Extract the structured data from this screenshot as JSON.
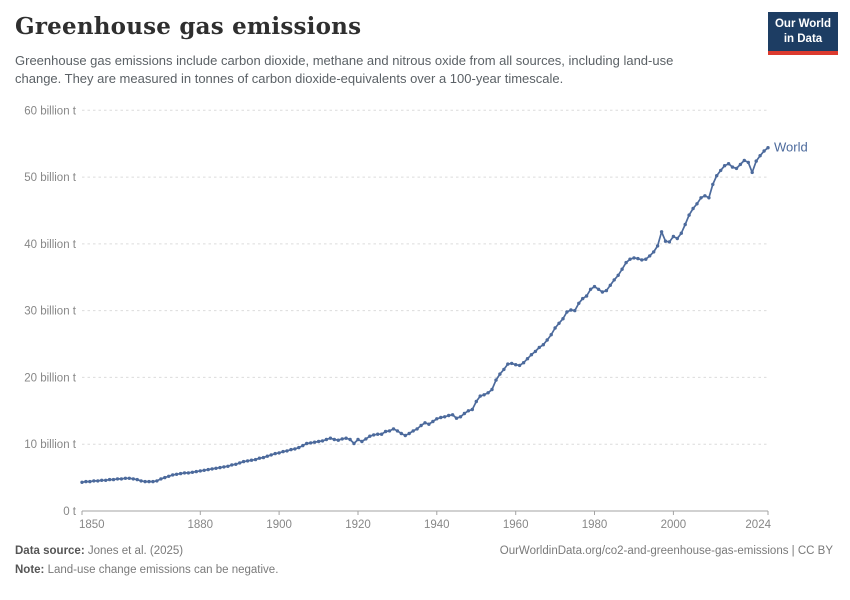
{
  "header": {
    "title": "Greenhouse gas emissions",
    "subtitle": "Greenhouse gas emissions include carbon dioxide, methane and nitrous oxide from all sources, including land-use change. They are measured in tonnes of carbon dioxide-equivalents over a 100-year timescale.",
    "logo": {
      "line1": "Our World",
      "line2": "in Data",
      "bg_color": "#1d3d63",
      "accent_color": "#dc3a2e"
    }
  },
  "chart_data": {
    "type": "line",
    "title": "Greenhouse gas emissions",
    "xlabel": "",
    "ylabel": "",
    "xlim": [
      1850,
      2024
    ],
    "ylim": [
      0,
      60
    ],
    "grid": "horizontal-dashed",
    "legend_position": "end-of-line-label",
    "x_ticks": [
      1850,
      1880,
      1900,
      1920,
      1940,
      1960,
      1980,
      2000,
      2024
    ],
    "y_ticks": [
      {
        "value": 0,
        "label": "0 t"
      },
      {
        "value": 10,
        "label": "10 billion t"
      },
      {
        "value": 20,
        "label": "20 billion t"
      },
      {
        "value": 30,
        "label": "30 billion t"
      },
      {
        "value": 40,
        "label": "40 billion t"
      },
      {
        "value": 50,
        "label": "50 billion t"
      },
      {
        "value": 60,
        "label": "60 billion t"
      }
    ],
    "grid_color": "#dcdcdc",
    "axis_color": "#a3a3a3",
    "tick_label_color": "#878787",
    "x_years": {
      "start": 1850,
      "end": 2024,
      "step": 1
    },
    "series": [
      {
        "name": "World",
        "color": "#4C6A9C",
        "values": [
          4.3,
          4.4,
          4.4,
          4.5,
          4.5,
          4.6,
          4.6,
          4.7,
          4.7,
          4.8,
          4.8,
          4.9,
          4.9,
          4.8,
          4.7,
          4.5,
          4.4,
          4.4,
          4.4,
          4.5,
          4.8,
          5.0,
          5.2,
          5.4,
          5.5,
          5.6,
          5.7,
          5.7,
          5.8,
          5.9,
          6.0,
          6.1,
          6.2,
          6.3,
          6.4,
          6.5,
          6.6,
          6.7,
          6.9,
          7.0,
          7.2,
          7.4,
          7.5,
          7.6,
          7.7,
          7.9,
          8.0,
          8.2,
          8.4,
          8.6,
          8.7,
          8.9,
          9.0,
          9.2,
          9.3,
          9.5,
          9.8,
          10.1,
          10.2,
          10.3,
          10.4,
          10.5,
          10.7,
          10.9,
          10.7,
          10.6,
          10.8,
          10.9,
          10.7,
          10.1,
          10.7,
          10.4,
          10.8,
          11.2,
          11.4,
          11.5,
          11.5,
          11.9,
          12.0,
          12.3,
          12.0,
          11.6,
          11.3,
          11.6,
          12.0,
          12.3,
          12.8,
          13.2,
          13.0,
          13.4,
          13.8,
          14.0,
          14.1,
          14.3,
          14.4,
          13.9,
          14.1,
          14.6,
          15.0,
          15.2,
          16.4,
          17.2,
          17.4,
          17.7,
          18.2,
          19.6,
          20.5,
          21.2,
          22.0,
          22.1,
          21.9,
          21.8,
          22.2,
          22.8,
          23.4,
          23.9,
          24.5,
          24.9,
          25.6,
          26.4,
          27.4,
          28.1,
          28.8,
          29.8,
          30.1,
          30.0,
          31.1,
          31.8,
          32.2,
          33.2,
          33.6,
          33.2,
          32.8,
          33.0,
          33.8,
          34.6,
          35.3,
          36.2,
          37.2,
          37.7,
          37.9,
          37.8,
          37.6,
          37.7,
          38.2,
          38.8,
          39.7,
          41.8,
          40.4,
          40.3,
          41.1,
          40.8,
          41.6,
          42.9,
          44.3,
          45.3,
          46.0,
          46.9,
          47.2,
          46.9,
          48.9,
          50.2,
          51.0,
          51.7,
          52.0,
          51.5,
          51.3,
          51.9,
          52.5,
          52.2,
          50.7,
          52.4,
          53.2,
          53.9,
          54.4
        ]
      }
    ]
  },
  "footer": {
    "source_label": "Data source:",
    "source_value": "Jones et al. (2025)",
    "note_label": "Note:",
    "note_value": "Land-use change emissions can be negative.",
    "attribution": "OurWorldinData.org/co2-and-greenhouse-gas-emissions | CC BY"
  }
}
